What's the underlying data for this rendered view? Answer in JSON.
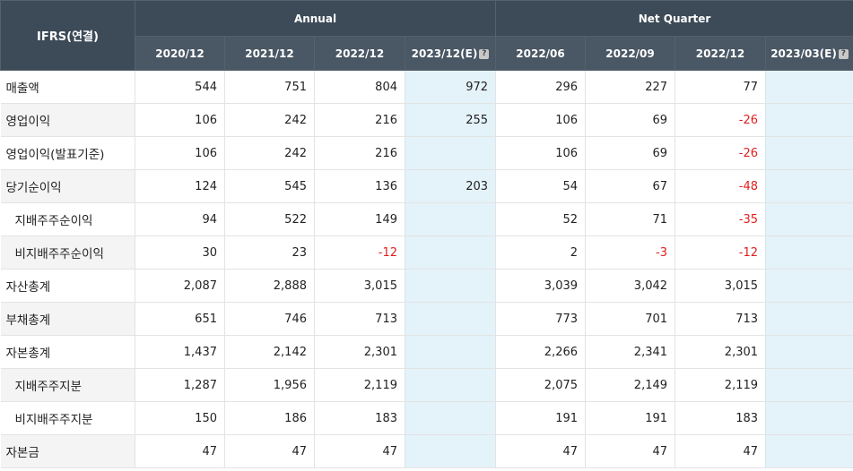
{
  "header": {
    "corner": "IFRS(연결)",
    "annual": "Annual",
    "quarter": "Net Quarter",
    "annual_cols": [
      "2020/12",
      "2021/12",
      "2022/12",
      "2023/12(E)"
    ],
    "quarter_cols": [
      "2022/06",
      "2022/09",
      "2022/12",
      "2023/03(E)"
    ],
    "estimate_icon": "?"
  },
  "rows": [
    {
      "label": "매출액",
      "values": [
        "544",
        "751",
        "804",
        "972",
        "296",
        "227",
        "77",
        ""
      ]
    },
    {
      "label": "영업이익",
      "values": [
        "106",
        "242",
        "216",
        "255",
        "106",
        "69",
        "-26",
        ""
      ]
    },
    {
      "label": "영업이익(발표기준)",
      "values": [
        "106",
        "242",
        "216",
        "",
        "106",
        "69",
        "-26",
        ""
      ]
    },
    {
      "label": "당기순이익",
      "values": [
        "124",
        "545",
        "136",
        "203",
        "54",
        "67",
        "-48",
        ""
      ]
    },
    {
      "label": "지배주주순이익",
      "values": [
        "94",
        "522",
        "149",
        "",
        "52",
        "71",
        "-35",
        ""
      ]
    },
    {
      "label": "비지배주주순이익",
      "values": [
        "30",
        "23",
        "-12",
        "",
        "2",
        "-3",
        "-12",
        ""
      ]
    },
    {
      "label": "자산총계",
      "values": [
        "2,087",
        "2,888",
        "3,015",
        "",
        "3,039",
        "3,042",
        "3,015",
        ""
      ]
    },
    {
      "label": "부채총계",
      "values": [
        "651",
        "746",
        "713",
        "",
        "773",
        "701",
        "713",
        ""
      ]
    },
    {
      "label": "자본총계",
      "values": [
        "1,437",
        "2,142",
        "2,301",
        "",
        "2,266",
        "2,341",
        "2,301",
        ""
      ]
    },
    {
      "label": "지배주주지분",
      "values": [
        "1,287",
        "1,956",
        "2,119",
        "",
        "2,075",
        "2,149",
        "2,119",
        ""
      ]
    },
    {
      "label": "비지배주주지분",
      "values": [
        "150",
        "186",
        "183",
        "",
        "191",
        "191",
        "183",
        ""
      ]
    },
    {
      "label": "자본금",
      "values": [
        "47",
        "47",
        "47",
        "",
        "47",
        "47",
        "47",
        ""
      ]
    }
  ],
  "colors": {
    "header": "#3d4a57",
    "estimate_col": "#e4f2f9",
    "negative": "#e02020"
  }
}
